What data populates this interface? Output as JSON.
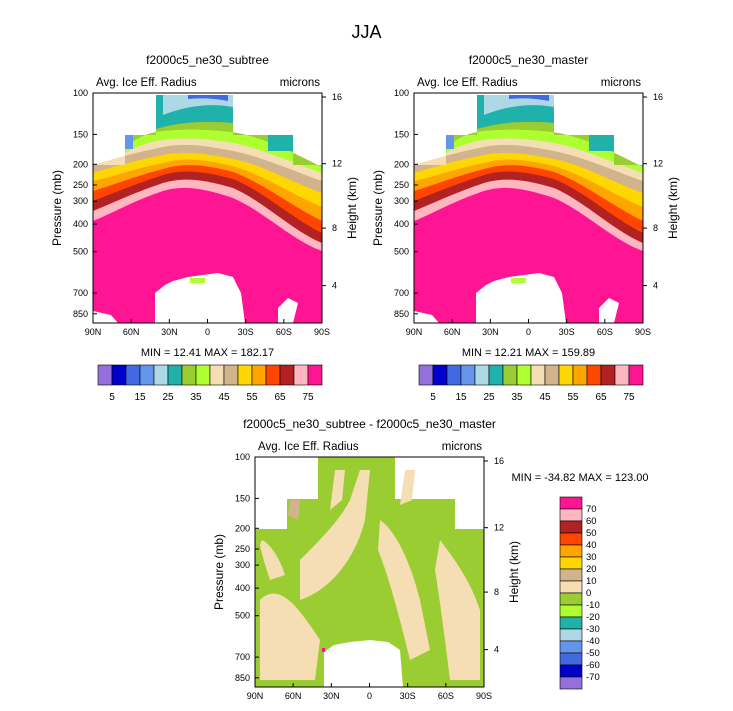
{
  "figure_title": "JJA",
  "chart_data": [
    {
      "type": "heatmap",
      "title": "f2000c5_ne30_subtree",
      "field": "Avg. Ice Eff. Radius",
      "units": "microns",
      "ylabel": "Pressure (mb)",
      "ylabel_right": "Height (km)",
      "x_ticks": [
        "90N",
        "60N",
        "30N",
        "0",
        "30S",
        "60S",
        "90S"
      ],
      "y_ticks": [
        "100",
        "150",
        "200",
        "250",
        "300",
        "400",
        "500",
        "700",
        "850"
      ],
      "y_ticks_right": [
        "16",
        "12",
        "8",
        "4"
      ],
      "stats": {
        "min_label": "MIN = ",
        "min": "12.41",
        "max_label": "MAX = ",
        "max": "182.17"
      },
      "colorbar": {
        "orientation": "horizontal",
        "labels": [
          "5",
          "15",
          "25",
          "35",
          "45",
          "55",
          "65",
          "75"
        ],
        "colors": [
          "#9370DB",
          "#0000CD",
          "#4169E1",
          "#6495ED",
          "#ADD8E6",
          "#20B2AA",
          "#9ACD32",
          "#ADFF2F",
          "#F5DEB3",
          "#D2B48C",
          "#FFD700",
          "#FFA500",
          "#FF4500",
          "#B22222",
          "#FFB6C1",
          "#FF1493"
        ]
      }
    },
    {
      "type": "heatmap",
      "title": "f2000c5_ne30_master",
      "field": "Avg. Ice Eff. Radius",
      "units": "microns",
      "ylabel": "Pressure (mb)",
      "ylabel_right": "Height (km)",
      "x_ticks": [
        "90N",
        "60N",
        "30N",
        "0",
        "30S",
        "60S",
        "90S"
      ],
      "y_ticks": [
        "100",
        "150",
        "200",
        "250",
        "300",
        "400",
        "500",
        "700",
        "850"
      ],
      "y_ticks_right": [
        "16",
        "12",
        "8",
        "4"
      ],
      "stats": {
        "min_label": "MIN = ",
        "min": "12.21",
        "max_label": "MAX = ",
        "max": "159.89"
      },
      "colorbar": {
        "orientation": "horizontal",
        "labels": [
          "5",
          "15",
          "25",
          "35",
          "45",
          "55",
          "65",
          "75"
        ],
        "colors": [
          "#9370DB",
          "#0000CD",
          "#4169E1",
          "#6495ED",
          "#ADD8E6",
          "#20B2AA",
          "#9ACD32",
          "#ADFF2F",
          "#F5DEB3",
          "#D2B48C",
          "#FFD700",
          "#FFA500",
          "#FF4500",
          "#B22222",
          "#FFB6C1",
          "#FF1493"
        ]
      }
    },
    {
      "type": "heatmap",
      "title": "f2000c5_ne30_subtree - f2000c5_ne30_master",
      "field": "Avg. Ice Eff. Radius",
      "units": "microns",
      "ylabel": "Pressure (mb)",
      "ylabel_right": "Height (km)",
      "x_ticks": [
        "90N",
        "60N",
        "30N",
        "0",
        "30S",
        "60S",
        "90S"
      ],
      "y_ticks": [
        "100",
        "150",
        "200",
        "250",
        "300",
        "400",
        "500",
        "700",
        "850"
      ],
      "y_ticks_right": [
        "16",
        "12",
        "8",
        "4"
      ],
      "stats": {
        "min_label": "MIN = ",
        "min": "-34.82",
        "max_label": "MAX = ",
        "max": "123.00"
      },
      "colorbar": {
        "orientation": "vertical",
        "labels": [
          "70",
          "60",
          "50",
          "40",
          "30",
          "20",
          "10",
          "0",
          "-10",
          "-20",
          "-30",
          "-40",
          "-50",
          "-60",
          "-70"
        ],
        "colors": [
          "#FF1493",
          "#FFB6C1",
          "#B22222",
          "#FF4500",
          "#FFA500",
          "#FFD700",
          "#D2B48C",
          "#F5DEB3",
          "#9ACD32",
          "#ADFF2F",
          "#20B2AA",
          "#ADD8E6",
          "#6495ED",
          "#4169E1",
          "#0000CD",
          "#9370DB"
        ]
      }
    }
  ]
}
